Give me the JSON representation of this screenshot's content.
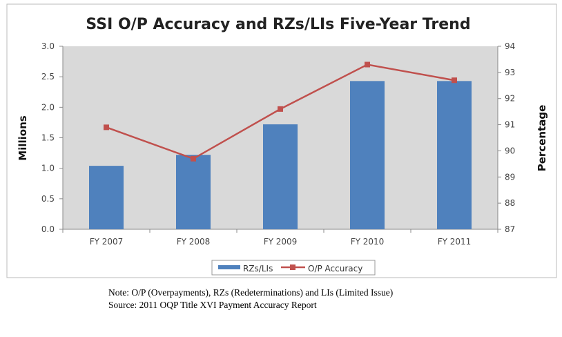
{
  "chart_data": {
    "type": "bar+line",
    "title": "SSI O/P Accuracy and RZs/LIs Five-Year Trend",
    "categories": [
      "FY 2007",
      "FY 2008",
      "FY 2009",
      "FY 2010",
      "FY 2011"
    ],
    "series": [
      {
        "name": "RZs/LIs",
        "type": "bar",
        "axis": "left",
        "color": "#4f81bd",
        "values": [
          1.04,
          1.22,
          1.72,
          2.43,
          2.43
        ]
      },
      {
        "name": "O/P Accuracy",
        "type": "line",
        "axis": "right",
        "color": "#c0504d",
        "values": [
          90.9,
          89.7,
          91.6,
          93.3,
          92.7
        ]
      }
    ],
    "ylabel": "Millions",
    "ylim": [
      0,
      3.0
    ],
    "yticks": [
      "0.0",
      "0.5",
      "1.0",
      "1.5",
      "2.0",
      "2.5",
      "3.0"
    ],
    "y2label": "Percentage",
    "y2lim": [
      87,
      94
    ],
    "y2ticks": [
      "87",
      "88",
      "89",
      "90",
      "91",
      "92",
      "93",
      "94"
    ],
    "legend": "bottom",
    "grid": false
  },
  "notes": {
    "note": "Note: O/P (Overpayments), RZs (Redeterminations) and LIs (Limited Issue)",
    "source": "Source: 2011 OQP Title XVI Payment Accuracy Report"
  }
}
